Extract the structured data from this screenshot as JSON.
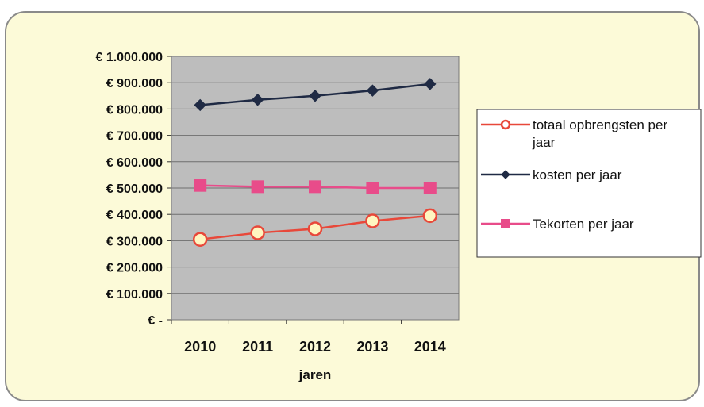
{
  "chart_data": {
    "type": "line",
    "categories": [
      "2010",
      "2011",
      "2012",
      "2013",
      "2014"
    ],
    "series": [
      {
        "name": "totaal opbrengsten per jaar",
        "values": [
          305000,
          330000,
          345000,
          375000,
          395000
        ],
        "color": "#e8483a",
        "marker": "circle-open"
      },
      {
        "name": "kosten per jaar",
        "values": [
          815000,
          835000,
          850000,
          870000,
          895000
        ],
        "color": "#1f2a44",
        "marker": "diamond"
      },
      {
        "name": "Tekorten per jaar",
        "values": [
          510000,
          505000,
          505000,
          500000,
          500000
        ],
        "color": "#e84c8a",
        "marker": "square"
      }
    ],
    "y_tick_labels": [
      "€ 1.000.000",
      "€ 900.000",
      "€ 800.000",
      "€ 700.000",
      "€ 600.000",
      "€ 500.000",
      "€ 400.000",
      "€ 300.000",
      "€ 200.000",
      "€ 100.000",
      "€ -"
    ],
    "xlabel": "jaren",
    "ylabel": "",
    "ylim": [
      0,
      1000000
    ],
    "grid": true,
    "legend_position": "right",
    "plot_background": "#b8b8b8"
  }
}
